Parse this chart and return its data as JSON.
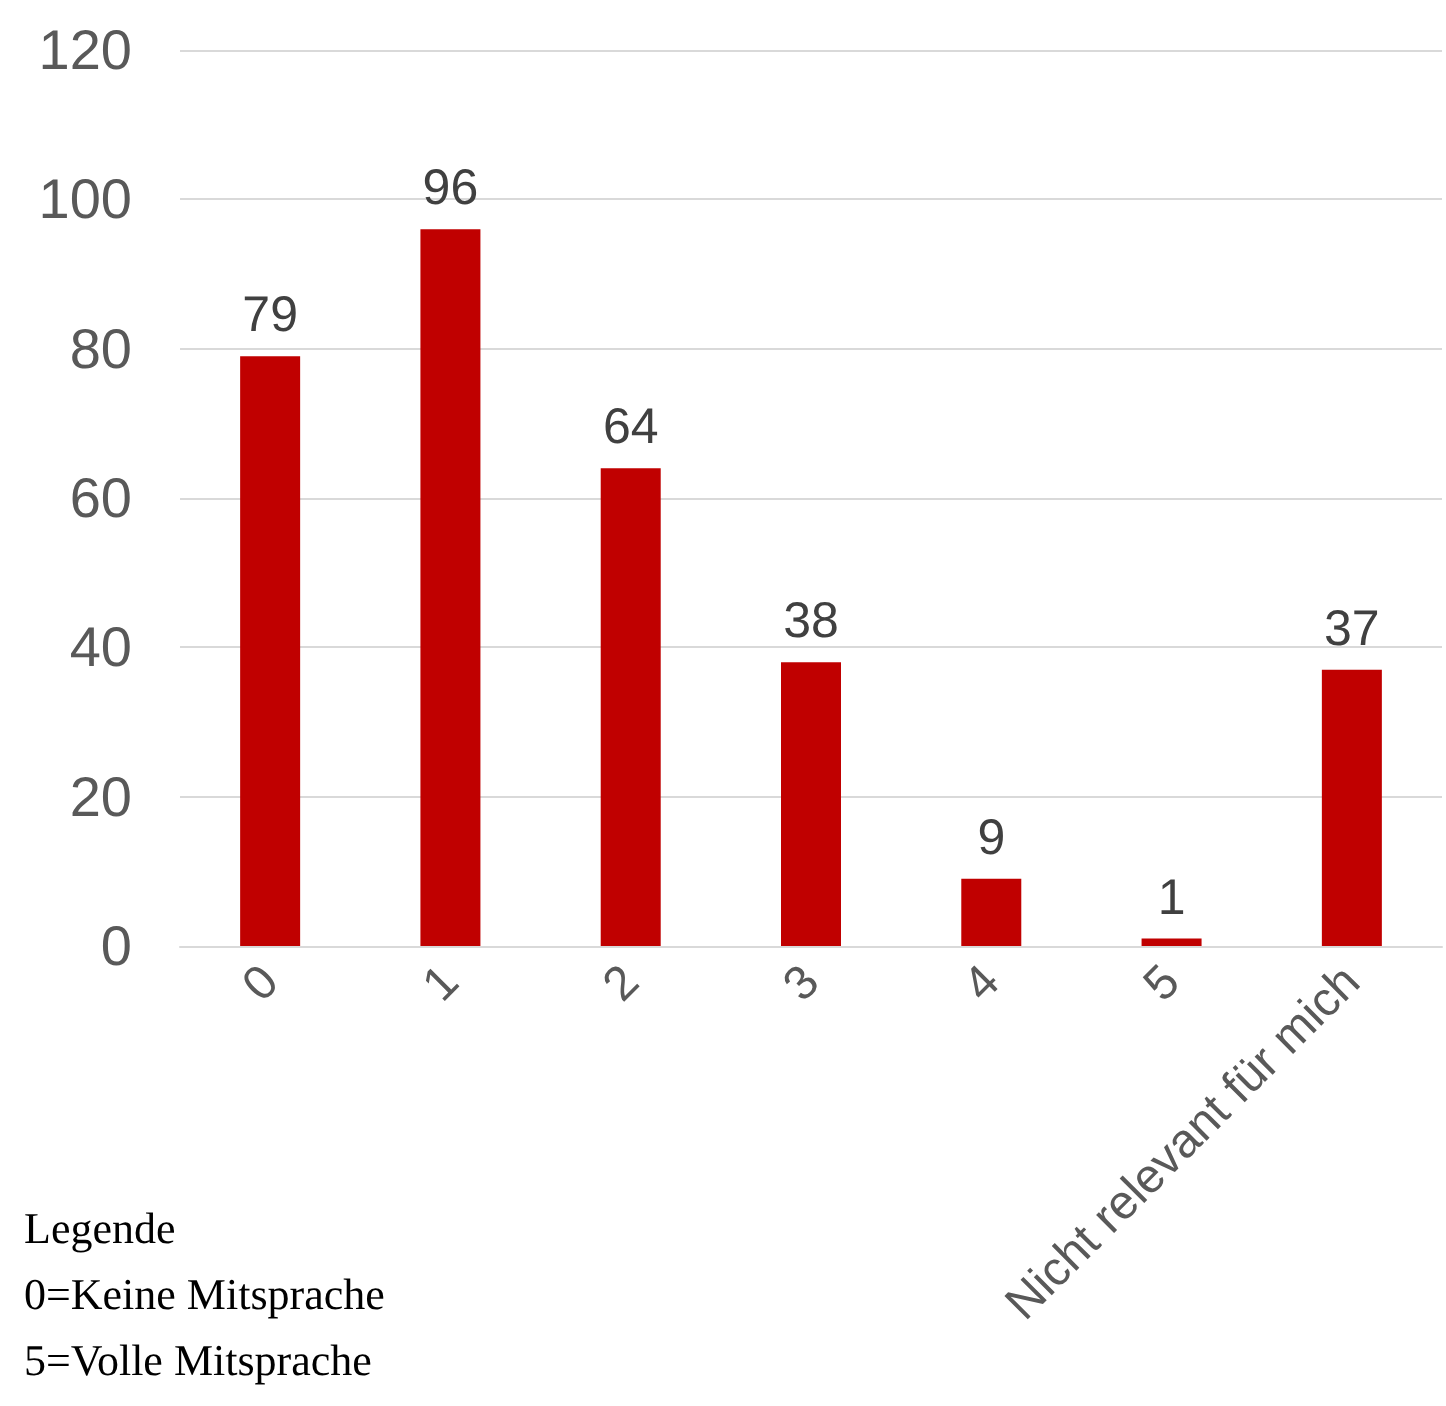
{
  "chart_data": {
    "type": "bar",
    "categories": [
      "0",
      "1",
      "2",
      "3",
      "4",
      "5",
      "Nicht relevant für mich"
    ],
    "values": [
      79,
      96,
      64,
      38,
      9,
      1,
      37
    ],
    "color": "#c00000",
    "ylim": [
      0,
      120
    ],
    "yticks": [
      0,
      20,
      40,
      60,
      80,
      100,
      120
    ],
    "grid": "y",
    "data_labels": true,
    "annotations": [
      "Legende",
      "0=Keine Mitsprache",
      "5=Volle Mitsprache"
    ]
  }
}
